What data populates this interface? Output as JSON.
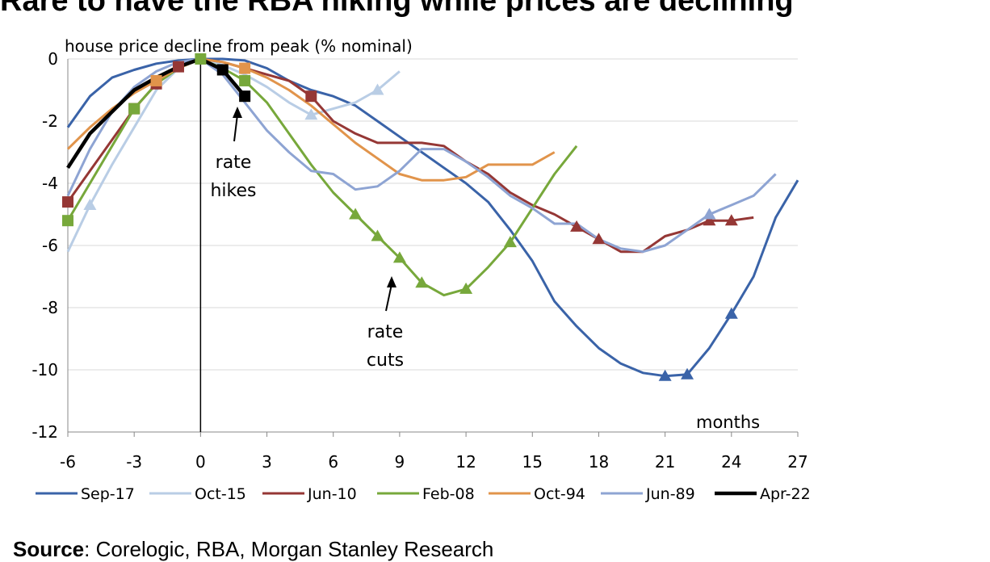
{
  "title": "Rare to have the RBA hiking while prices are declining",
  "source": {
    "label": "Source",
    "text": ": Corelogic, RBA, Morgan Stanley Research"
  },
  "chart_data": {
    "type": "line",
    "ylabel": "house price decline from peak (% nominal)",
    "xlabel": "months",
    "xlim": [
      -6,
      27
    ],
    "ylim": [
      -12,
      0
    ],
    "xticks": [
      "-6",
      "-3",
      "0",
      "3",
      "6",
      "9",
      "12",
      "15",
      "18",
      "21",
      "24",
      "27"
    ],
    "yticks": [
      "0",
      "-2",
      "-4",
      "-6",
      "-8",
      "-10",
      "-12"
    ],
    "grid": "horizontal",
    "legend_position": "bottom",
    "annotations": [
      {
        "lines": [
          "rate",
          "hikes"
        ]
      },
      {
        "lines": [
          "rate",
          "cuts"
        ]
      }
    ],
    "series": [
      {
        "name": "Sep-17",
        "color": "#3a63a8",
        "x": [
          -6,
          -5,
          -4,
          -3,
          -2,
          -1,
          0,
          1,
          2,
          3,
          4,
          5,
          6,
          7,
          8,
          9,
          10,
          11,
          12,
          13,
          14,
          15,
          16,
          17,
          18,
          19,
          20,
          21,
          22,
          23,
          24,
          25,
          26,
          27
        ],
        "y": [
          -2.2,
          -1.2,
          -0.6,
          -0.35,
          -0.15,
          -0.05,
          0,
          0,
          -0.05,
          -0.3,
          -0.7,
          -1.0,
          -1.2,
          -1.5,
          -2.0,
          -2.5,
          -3.0,
          -3.5,
          -4.0,
          -4.6,
          -5.5,
          -6.5,
          -7.8,
          -8.6,
          -9.3,
          -9.8,
          -10.1,
          -10.2,
          -10.15,
          -9.3,
          -8.2,
          -7.0,
          -5.1,
          -3.9
        ],
        "markers": [
          21,
          22,
          24
        ]
      },
      {
        "name": "Oct-15",
        "color": "#b9cde5",
        "x": [
          -6,
          -5,
          -4,
          -3,
          -2,
          -1,
          0,
          1,
          2,
          3,
          4,
          5,
          6,
          7,
          8,
          9
        ],
        "y": [
          -6.2,
          -4.7,
          -3.4,
          -2.2,
          -1.0,
          -0.3,
          0,
          -0.2,
          -0.5,
          -0.9,
          -1.4,
          -1.8,
          -1.6,
          -1.4,
          -1.0,
          -0.4
        ],
        "markers": [
          -5,
          5,
          8
        ]
      },
      {
        "name": "Jun-10",
        "color": "#953735",
        "x": [
          -6,
          -5,
          -4,
          -3,
          -2,
          -1,
          0,
          1,
          2,
          3,
          4,
          5,
          6,
          7,
          8,
          9,
          10,
          11,
          12,
          13,
          14,
          15,
          16,
          17,
          18,
          19,
          20,
          21,
          22,
          23,
          24,
          25
        ],
        "y": [
          -4.6,
          -3.6,
          -2.6,
          -1.6,
          -0.8,
          -0.25,
          0,
          -0.1,
          -0.3,
          -0.5,
          -0.7,
          -1.2,
          -2.0,
          -2.4,
          -2.7,
          -2.7,
          -2.7,
          -2.8,
          -3.3,
          -3.7,
          -4.3,
          -4.7,
          -5.0,
          -5.4,
          -5.8,
          -6.2,
          -6.2,
          -5.7,
          -5.5,
          -5.2,
          -5.2,
          -5.1
        ],
        "markers": [
          17,
          18,
          23,
          24
        ],
        "squares": [
          -6,
          -3,
          -2,
          -1,
          5
        ]
      },
      {
        "name": "Feb-08",
        "color": "#77a83b",
        "x": [
          -6,
          -5,
          -4,
          -3,
          -2,
          -1,
          0,
          1,
          2,
          3,
          4,
          5,
          6,
          7,
          8,
          9,
          10,
          11,
          12,
          13,
          14,
          15,
          16,
          17
        ],
        "y": [
          -5.2,
          -4.0,
          -2.8,
          -1.6,
          -0.8,
          -0.3,
          0,
          -0.3,
          -0.7,
          -1.4,
          -2.4,
          -3.4,
          -4.3,
          -5.0,
          -5.7,
          -6.4,
          -7.2,
          -7.6,
          -7.4,
          -6.7,
          -5.9,
          -4.8,
          -3.7,
          -2.8
        ],
        "markers": [
          7,
          8,
          9,
          10,
          12,
          14
        ],
        "squares": [
          -6,
          -3,
          0,
          2
        ]
      },
      {
        "name": "Oct-94",
        "color": "#e1944b",
        "x": [
          -6,
          -5,
          -4,
          -3,
          -2,
          -1,
          0,
          1,
          2,
          3,
          4,
          5,
          6,
          7,
          8,
          9,
          10,
          11,
          12,
          13,
          14,
          15,
          16
        ],
        "y": [
          -2.9,
          -2.2,
          -1.6,
          -1.1,
          -0.7,
          -0.3,
          0,
          -0.1,
          -0.3,
          -0.6,
          -1.0,
          -1.5,
          -2.1,
          -2.7,
          -3.2,
          -3.7,
          -3.9,
          -3.9,
          -3.8,
          -3.4,
          -3.4,
          -3.4,
          -3.0
        ],
        "squares": [
          -2,
          2
        ]
      },
      {
        "name": "Jun-89",
        "color": "#8ea4d3",
        "x": [
          -6,
          -5,
          -4,
          -3,
          -2,
          -1,
          0,
          1,
          2,
          3,
          4,
          5,
          6,
          7,
          8,
          9,
          10,
          11,
          12,
          13,
          14,
          15,
          16,
          17,
          18,
          19,
          20,
          21,
          22,
          23,
          24,
          25,
          26
        ],
        "y": [
          -4.4,
          -2.9,
          -1.7,
          -0.9,
          -0.4,
          -0.1,
          0,
          -0.5,
          -1.4,
          -2.3,
          -3.0,
          -3.6,
          -3.7,
          -4.2,
          -4.1,
          -3.6,
          -2.9,
          -2.9,
          -3.3,
          -3.8,
          -4.4,
          -4.8,
          -5.3,
          -5.3,
          -5.8,
          -6.1,
          -6.2,
          -6.0,
          -5.5,
          -5.0,
          -4.7,
          -4.4,
          -3.7
        ],
        "markers": [
          23
        ]
      },
      {
        "name": "Apr-22",
        "color": "#000000",
        "x": [
          -6,
          -5,
          -4,
          -3,
          -2,
          -1,
          0,
          1,
          2
        ],
        "y": [
          -3.5,
          -2.4,
          -1.7,
          -1.0,
          -0.6,
          -0.25,
          0,
          -0.35,
          -1.2
        ],
        "squares": [
          1,
          2
        ]
      }
    ]
  }
}
